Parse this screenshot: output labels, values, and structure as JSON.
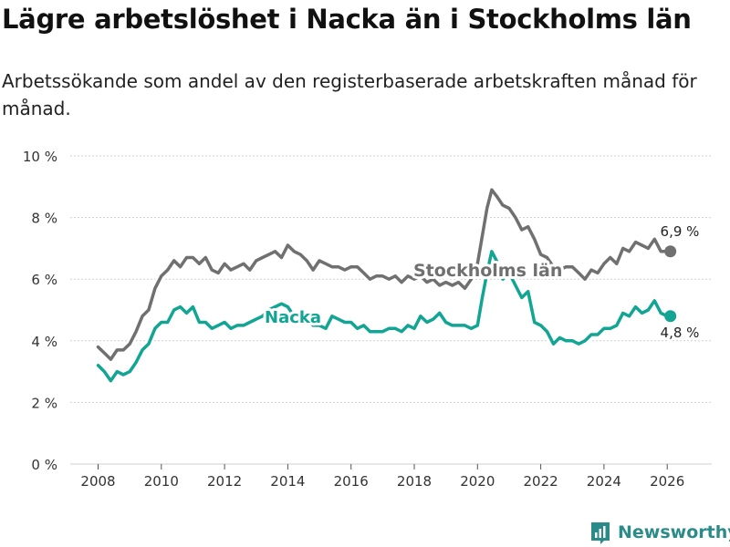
{
  "title": "Lägre arbetslöshet i Nacka än i Stockholms län",
  "subtitle": "Arbetssökande som andel av den registerbaserade arbetskraften månad för månad.",
  "brand": {
    "name": "Newsworthy",
    "color": "#2a8b88"
  },
  "chart_data": {
    "type": "line",
    "title": "Lägre arbetslöshet i Nacka än i Stockholms län",
    "xlabel": "",
    "ylabel": "",
    "xlim": [
      2007.5,
      2027.0
    ],
    "ylim": [
      0,
      10
    ],
    "grid": true,
    "x_ticks": [
      {
        "value": 2008,
        "label": "2008"
      },
      {
        "value": 2010,
        "label": "2010"
      },
      {
        "value": 2012,
        "label": "2012"
      },
      {
        "value": 2014,
        "label": "2014"
      },
      {
        "value": 2016,
        "label": "2016"
      },
      {
        "value": 2018,
        "label": "2018"
      },
      {
        "value": 2020,
        "label": "2020"
      },
      {
        "value": 2022,
        "label": "2022"
      },
      {
        "value": 2024,
        "label": "2024"
      },
      {
        "value": 2026,
        "label": "2026"
      }
    ],
    "y_ticks": [
      {
        "value": 0,
        "label": "0 %"
      },
      {
        "value": 2,
        "label": "2 %"
      },
      {
        "value": 4,
        "label": "4 %"
      },
      {
        "value": 6,
        "label": "6 %"
      },
      {
        "value": 8,
        "label": "8 %"
      },
      {
        "value": 10,
        "label": "10 %"
      }
    ],
    "series": [
      {
        "name": "Stockholms län",
        "color": "#707070",
        "label_text": "Stockholms län",
        "end_label": "6,9 %",
        "points": [
          [
            2008.0,
            3.8
          ],
          [
            2008.2,
            3.6
          ],
          [
            2008.4,
            3.4
          ],
          [
            2008.6,
            3.7
          ],
          [
            2008.8,
            3.7
          ],
          [
            2009.0,
            3.9
          ],
          [
            2009.2,
            4.3
          ],
          [
            2009.4,
            4.8
          ],
          [
            2009.6,
            5.0
          ],
          [
            2009.8,
            5.7
          ],
          [
            2010.0,
            6.1
          ],
          [
            2010.2,
            6.3
          ],
          [
            2010.4,
            6.6
          ],
          [
            2010.6,
            6.4
          ],
          [
            2010.8,
            6.7
          ],
          [
            2011.0,
            6.7
          ],
          [
            2011.2,
            6.5
          ],
          [
            2011.4,
            6.7
          ],
          [
            2011.6,
            6.3
          ],
          [
            2011.8,
            6.2
          ],
          [
            2012.0,
            6.5
          ],
          [
            2012.2,
            6.3
          ],
          [
            2012.4,
            6.4
          ],
          [
            2012.6,
            6.5
          ],
          [
            2012.8,
            6.3
          ],
          [
            2013.0,
            6.6
          ],
          [
            2013.2,
            6.7
          ],
          [
            2013.4,
            6.8
          ],
          [
            2013.6,
            6.9
          ],
          [
            2013.8,
            6.7
          ],
          [
            2014.0,
            7.1
          ],
          [
            2014.2,
            6.9
          ],
          [
            2014.4,
            6.8
          ],
          [
            2014.6,
            6.6
          ],
          [
            2014.8,
            6.3
          ],
          [
            2015.0,
            6.6
          ],
          [
            2015.2,
            6.5
          ],
          [
            2015.4,
            6.4
          ],
          [
            2015.6,
            6.4
          ],
          [
            2015.8,
            6.3
          ],
          [
            2016.0,
            6.4
          ],
          [
            2016.2,
            6.4
          ],
          [
            2016.4,
            6.2
          ],
          [
            2016.6,
            6.0
          ],
          [
            2016.8,
            6.1
          ],
          [
            2017.0,
            6.1
          ],
          [
            2017.2,
            6.0
          ],
          [
            2017.4,
            6.1
          ],
          [
            2017.6,
            5.9
          ],
          [
            2017.8,
            6.1
          ],
          [
            2018.0,
            6.0
          ],
          [
            2018.2,
            6.1
          ],
          [
            2018.4,
            5.9
          ],
          [
            2018.6,
            6.0
          ],
          [
            2018.8,
            5.8
          ],
          [
            2019.0,
            5.9
          ],
          [
            2019.2,
            5.8
          ],
          [
            2019.4,
            5.9
          ],
          [
            2019.6,
            5.7
          ],
          [
            2019.8,
            6.0
          ],
          [
            2020.0,
            6.5
          ],
          [
            2020.15,
            7.4
          ],
          [
            2020.3,
            8.3
          ],
          [
            2020.45,
            8.9
          ],
          [
            2020.6,
            8.7
          ],
          [
            2020.8,
            8.4
          ],
          [
            2021.0,
            8.3
          ],
          [
            2021.2,
            8.0
          ],
          [
            2021.4,
            7.6
          ],
          [
            2021.6,
            7.7
          ],
          [
            2021.8,
            7.3
          ],
          [
            2022.0,
            6.8
          ],
          [
            2022.2,
            6.7
          ],
          [
            2022.4,
            6.4
          ],
          [
            2022.6,
            6.3
          ],
          [
            2022.8,
            6.4
          ],
          [
            2023.0,
            6.4
          ],
          [
            2023.2,
            6.2
          ],
          [
            2023.4,
            6.0
          ],
          [
            2023.6,
            6.3
          ],
          [
            2023.8,
            6.2
          ],
          [
            2024.0,
            6.5
          ],
          [
            2024.2,
            6.7
          ],
          [
            2024.4,
            6.5
          ],
          [
            2024.6,
            7.0
          ],
          [
            2024.8,
            6.9
          ],
          [
            2025.0,
            7.2
          ],
          [
            2025.2,
            7.1
          ],
          [
            2025.4,
            7.0
          ],
          [
            2025.6,
            7.3
          ],
          [
            2025.8,
            6.9
          ],
          [
            2026.0,
            6.9
          ],
          [
            2026.1,
            6.9
          ]
        ]
      },
      {
        "name": "Nacka",
        "color": "#12a594",
        "label_text": "Nacka",
        "end_label": "4,8 %",
        "points": [
          [
            2008.0,
            3.2
          ],
          [
            2008.2,
            3.0
          ],
          [
            2008.4,
            2.7
          ],
          [
            2008.6,
            3.0
          ],
          [
            2008.8,
            2.9
          ],
          [
            2009.0,
            3.0
          ],
          [
            2009.2,
            3.3
          ],
          [
            2009.4,
            3.7
          ],
          [
            2009.6,
            3.9
          ],
          [
            2009.8,
            4.4
          ],
          [
            2010.0,
            4.6
          ],
          [
            2010.2,
            4.6
          ],
          [
            2010.4,
            5.0
          ],
          [
            2010.6,
            5.1
          ],
          [
            2010.8,
            4.9
          ],
          [
            2011.0,
            5.1
          ],
          [
            2011.2,
            4.6
          ],
          [
            2011.4,
            4.6
          ],
          [
            2011.6,
            4.4
          ],
          [
            2011.8,
            4.5
          ],
          [
            2012.0,
            4.6
          ],
          [
            2012.2,
            4.4
          ],
          [
            2012.4,
            4.5
          ],
          [
            2012.6,
            4.5
          ],
          [
            2012.8,
            4.6
          ],
          [
            2013.0,
            4.7
          ],
          [
            2013.2,
            4.8
          ],
          [
            2013.4,
            5.0
          ],
          [
            2013.6,
            5.1
          ],
          [
            2013.8,
            5.2
          ],
          [
            2014.0,
            5.1
          ],
          [
            2014.2,
            4.8
          ],
          [
            2014.4,
            4.8
          ],
          [
            2014.6,
            4.7
          ],
          [
            2014.8,
            4.5
          ],
          [
            2015.0,
            4.5
          ],
          [
            2015.2,
            4.4
          ],
          [
            2015.4,
            4.8
          ],
          [
            2015.6,
            4.7
          ],
          [
            2015.8,
            4.6
          ],
          [
            2016.0,
            4.6
          ],
          [
            2016.2,
            4.4
          ],
          [
            2016.4,
            4.5
          ],
          [
            2016.6,
            4.3
          ],
          [
            2016.8,
            4.3
          ],
          [
            2017.0,
            4.3
          ],
          [
            2017.2,
            4.4
          ],
          [
            2017.4,
            4.4
          ],
          [
            2017.6,
            4.3
          ],
          [
            2017.8,
            4.5
          ],
          [
            2018.0,
            4.4
          ],
          [
            2018.2,
            4.8
          ],
          [
            2018.4,
            4.6
          ],
          [
            2018.6,
            4.7
          ],
          [
            2018.8,
            4.9
          ],
          [
            2019.0,
            4.6
          ],
          [
            2019.2,
            4.5
          ],
          [
            2019.4,
            4.5
          ],
          [
            2019.6,
            4.5
          ],
          [
            2019.8,
            4.4
          ],
          [
            2020.0,
            4.5
          ],
          [
            2020.15,
            5.4
          ],
          [
            2020.3,
            6.2
          ],
          [
            2020.45,
            6.9
          ],
          [
            2020.6,
            6.6
          ],
          [
            2020.8,
            6.0
          ],
          [
            2021.0,
            6.2
          ],
          [
            2021.2,
            5.8
          ],
          [
            2021.4,
            5.4
          ],
          [
            2021.6,
            5.6
          ],
          [
            2021.8,
            4.6
          ],
          [
            2022.0,
            4.5
          ],
          [
            2022.2,
            4.3
          ],
          [
            2022.4,
            3.9
          ],
          [
            2022.6,
            4.1
          ],
          [
            2022.8,
            4.0
          ],
          [
            2023.0,
            4.0
          ],
          [
            2023.2,
            3.9
          ],
          [
            2023.4,
            4.0
          ],
          [
            2023.6,
            4.2
          ],
          [
            2023.8,
            4.2
          ],
          [
            2024.0,
            4.4
          ],
          [
            2024.2,
            4.4
          ],
          [
            2024.4,
            4.5
          ],
          [
            2024.6,
            4.9
          ],
          [
            2024.8,
            4.8
          ],
          [
            2025.0,
            5.1
          ],
          [
            2025.2,
            4.9
          ],
          [
            2025.4,
            5.0
          ],
          [
            2025.6,
            5.3
          ],
          [
            2025.8,
            4.9
          ],
          [
            2026.0,
            4.8
          ],
          [
            2026.1,
            4.8
          ]
        ]
      }
    ]
  }
}
